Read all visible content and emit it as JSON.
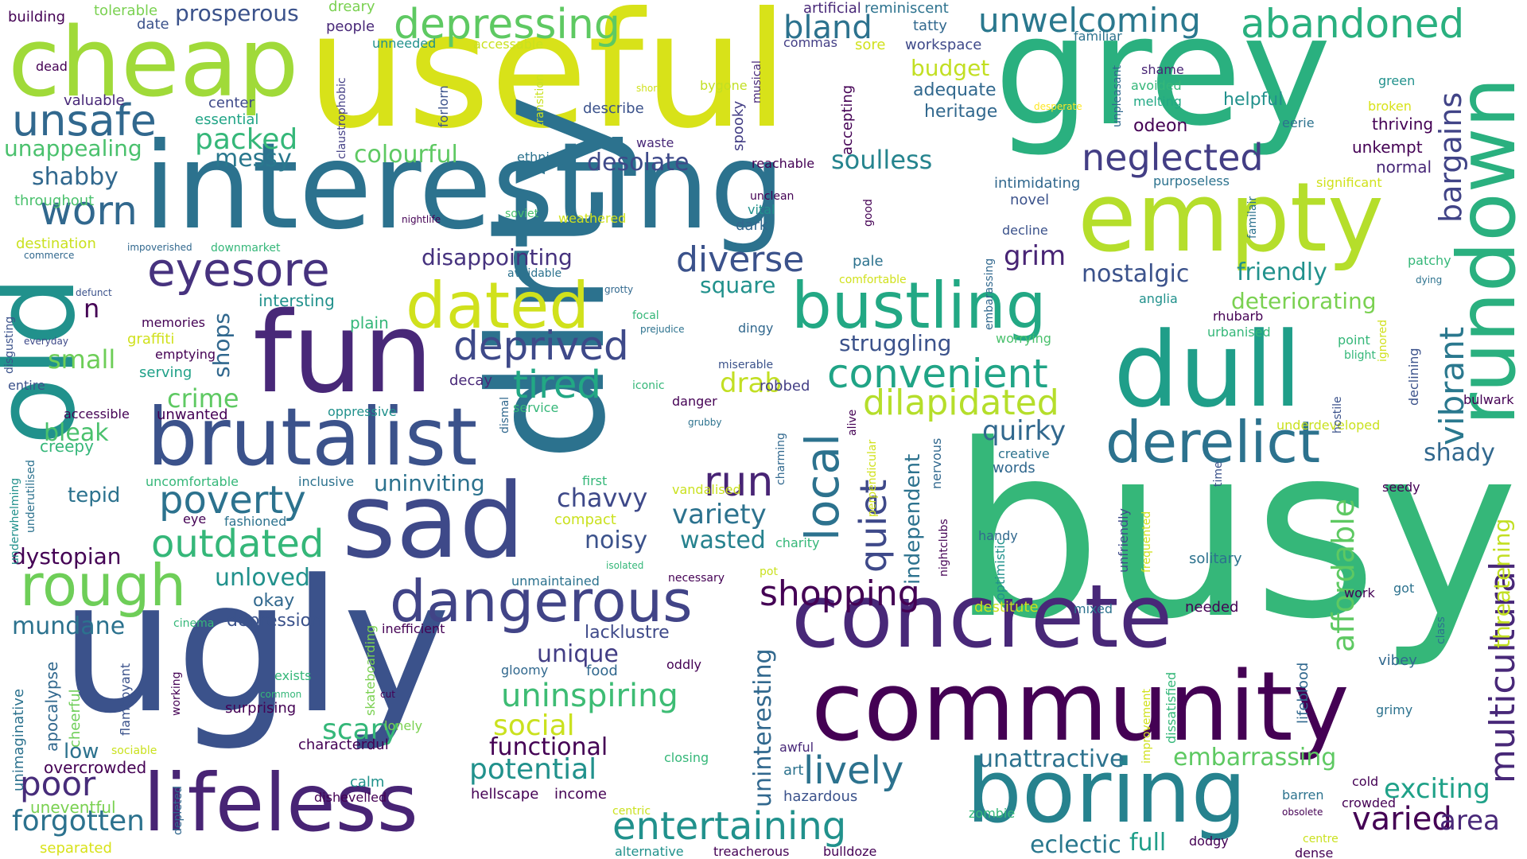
{
  "words": [
    {
      "text": "busy",
      "color": "#35b779"
    },
    {
      "text": "useful",
      "color": "#d8e219"
    },
    {
      "text": "grey",
      "color": "#2ab07f"
    },
    {
      "text": "interesting",
      "color": "#2c728e"
    },
    {
      "text": "dirty",
      "color": "#2c728e"
    },
    {
      "text": "ugly",
      "color": "#3b528b"
    },
    {
      "text": "old",
      "color": "#21918c"
    },
    {
      "text": "community",
      "color": "#440154"
    },
    {
      "text": "concrete",
      "color": "#482878"
    },
    {
      "text": "dull",
      "color": "#1f9e89"
    },
    {
      "text": "fun",
      "color": "#482878"
    },
    {
      "text": "cheap",
      "color": "#a0da39"
    },
    {
      "text": "empty",
      "color": "#b5de2b"
    },
    {
      "text": "sad",
      "color": "#3e4989"
    },
    {
      "text": "rundown",
      "color": "#2ab07f"
    },
    {
      "text": "brutalist",
      "color": "#3b528b"
    },
    {
      "text": "boring",
      "color": "#26828e"
    },
    {
      "text": "lifeless",
      "color": "#482475"
    },
    {
      "text": "dangerous",
      "color": "#414487"
    },
    {
      "text": "derelict",
      "color": "#2c728e"
    },
    {
      "text": "dated",
      "color": "#d0e11c"
    },
    {
      "text": "bustling",
      "color": "#22a884"
    },
    {
      "text": "rough",
      "color": "#6ece58"
    },
    {
      "text": "eyesore",
      "color": "#46327e"
    },
    {
      "text": "depressing",
      "color": "#5ec962"
    },
    {
      "text": "abandoned",
      "color": "#2ab07f"
    },
    {
      "text": "unsafe",
      "color": "#31688e"
    },
    {
      "text": "neglected",
      "color": "#433e85"
    },
    {
      "text": "local",
      "color": "#2c728e"
    },
    {
      "text": "worn",
      "color": "#31688e"
    },
    {
      "text": "bland",
      "color": "#2c728e"
    },
    {
      "text": "unwelcoming",
      "color": "#2a788e"
    },
    {
      "text": "deprived",
      "color": "#3e4989"
    },
    {
      "text": "diverse",
      "color": "#3b528b"
    },
    {
      "text": "convenient",
      "color": "#20a486"
    },
    {
      "text": "dilapidated",
      "color": "#b5de2b"
    },
    {
      "text": "outdated",
      "color": "#35b779"
    },
    {
      "text": "run",
      "color": "#482475"
    },
    {
      "text": "tired",
      "color": "#22a884"
    },
    {
      "text": "poverty",
      "color": "#2c728e"
    },
    {
      "text": "shopping",
      "color": "#440154"
    },
    {
      "text": "quiet",
      "color": "#3e4989"
    },
    {
      "text": "entertaining",
      "color": "#21918c"
    },
    {
      "text": "lively",
      "color": "#2c728e"
    },
    {
      "text": "poor",
      "color": "#472c7a"
    },
    {
      "text": "forgotten",
      "color": "#2c728e"
    },
    {
      "text": "multicultural",
      "color": "#482878"
    },
    {
      "text": "vibrant",
      "color": "#2a788e"
    },
    {
      "text": "bargains",
      "color": "#414487"
    },
    {
      "text": "affordable",
      "color": "#5ec962"
    },
    {
      "text": "varied",
      "color": "#440154"
    },
    {
      "text": "exciting",
      "color": "#1fa188"
    },
    {
      "text": "area",
      "color": "#482878"
    },
    {
      "text": "threatening",
      "color": "#c2df23"
    },
    {
      "text": "shady",
      "color": "#31688e"
    },
    {
      "text": "uninspiring",
      "color": "#3dbc74"
    },
    {
      "text": "social",
      "color": "#cae11f"
    },
    {
      "text": "potential",
      "color": "#21918c"
    },
    {
      "text": "scary",
      "color": "#35b779"
    },
    {
      "text": "functional",
      "color": "#440154"
    },
    {
      "text": "unattractive",
      "color": "#2c728e"
    },
    {
      "text": "embarrassing",
      "color": "#5ec962"
    },
    {
      "text": "eclectic",
      "color": "#2a788e"
    },
    {
      "text": "full",
      "color": "#1f9e89"
    },
    {
      "text": "unique",
      "color": "#433e85"
    },
    {
      "text": "variety",
      "color": "#2c728e"
    },
    {
      "text": "wasted",
      "color": "#26828e"
    },
    {
      "text": "chavvy",
      "color": "#3e4989"
    },
    {
      "text": "noisy",
      "color": "#3b528b"
    },
    {
      "text": "uninteresting",
      "color": "#31688e"
    },
    {
      "text": "soulless",
      "color": "#25848e"
    },
    {
      "text": "colourful",
      "color": "#5ec962"
    },
    {
      "text": "desolate",
      "color": "#3e4989"
    },
    {
      "text": "shabby",
      "color": "#31688e"
    },
    {
      "text": "packed",
      "color": "#35b779"
    },
    {
      "text": "messy",
      "color": "#2a788e"
    },
    {
      "text": "unappealing",
      "color": "#4ac16d"
    },
    {
      "text": "prosperous",
      "color": "#3b528b"
    },
    {
      "text": "disappointing",
      "color": "#46327e"
    },
    {
      "text": "grim",
      "color": "#482475"
    },
    {
      "text": "nostalgic",
      "color": "#3b528b"
    },
    {
      "text": "friendly",
      "color": "#21918c"
    },
    {
      "text": "deteriorating",
      "color": "#7ad151"
    },
    {
      "text": "struggling",
      "color": "#3b528b"
    },
    {
      "text": "quirky",
      "color": "#31688e"
    },
    {
      "text": "independent",
      "color": "#2c728e"
    },
    {
      "text": "crime",
      "color": "#5ec962"
    },
    {
      "text": "small",
      "color": "#6ece58"
    },
    {
      "text": "shops",
      "color": "#31688e"
    },
    {
      "text": "bleak",
      "color": "#4ac16d"
    },
    {
      "text": "mundane",
      "color": "#2c728e"
    },
    {
      "text": "unloved",
      "color": "#21918c"
    },
    {
      "text": "dystopian",
      "color": "#440154"
    },
    {
      "text": "uninviting",
      "color": "#2c728e"
    },
    {
      "text": "drab",
      "color": "#c2df23"
    },
    {
      "text": "square",
      "color": "#21918c"
    },
    {
      "text": "budget",
      "color": "#c2df23"
    },
    {
      "text": "adequate",
      "color": "#31688e"
    },
    {
      "text": "heritage",
      "color": "#31688e"
    },
    {
      "text": "helpful",
      "color": "#21918c"
    },
    {
      "text": "odeon",
      "color": "#440154"
    },
    {
      "text": "unkempt",
      "color": "#440154"
    },
    {
      "text": "normal",
      "color": "#482878"
    },
    {
      "text": "thriving",
      "color": "#440154"
    },
    {
      "text": "lackluster",
      "color": "#3e4989"
    },
    {
      "text": "lacklustre",
      "color": "#3e4989"
    },
    {
      "text": "n",
      "color": "#440154"
    },
    {
      "text": "low",
      "color": "#2c728e"
    },
    {
      "text": "okay",
      "color": "#31688e"
    },
    {
      "text": "depression",
      "color": "#3b528b"
    },
    {
      "text": "tepid",
      "color": "#2c728e"
    },
    {
      "text": "creepy",
      "color": "#35b779"
    },
    {
      "text": "cheerful",
      "color": "#6ece58"
    },
    {
      "text": "apocalypse",
      "color": "#31688e"
    },
    {
      "text": "unimaginative",
      "color": "#2c728e"
    },
    {
      "text": "overcrowded",
      "color": "#440154"
    },
    {
      "text": "uneventful",
      "color": "#7ad151"
    },
    {
      "text": "separated",
      "color": "#d8e219"
    },
    {
      "text": "serving",
      "color": "#1fa188"
    },
    {
      "text": "graffiti",
      "color": "#d0e11c"
    },
    {
      "text": "memories",
      "color": "#440154"
    },
    {
      "text": "plain",
      "color": "#35b779"
    },
    {
      "text": "intersting",
      "color": "#21918c"
    },
    {
      "text": "throughout",
      "color": "#4ac16d"
    },
    {
      "text": "destination",
      "color": "#cae11f"
    },
    {
      "text": "commerce",
      "color": "#31688e"
    },
    {
      "text": "downmarket",
      "color": "#35b779"
    },
    {
      "text": "impoverished",
      "color": "#31688e"
    },
    {
      "text": "avoidable",
      "color": "#2c728e"
    },
    {
      "text": "weathered",
      "color": "#d0e11c"
    },
    {
      "text": "building",
      "color": "#440154"
    },
    {
      "text": "tolerable",
      "color": "#7ad151"
    },
    {
      "text": "date",
      "color": "#3b528b"
    },
    {
      "text": "dreary",
      "color": "#7ad151"
    },
    {
      "text": "people",
      "color": "#482878"
    },
    {
      "text": "unneeded",
      "color": "#21918c"
    },
    {
      "text": "accessable",
      "color": "#cae11f"
    },
    {
      "text": "dead",
      "color": "#440154"
    },
    {
      "text": "valuable",
      "color": "#482878"
    },
    {
      "text": "center",
      "color": "#3e4989"
    },
    {
      "text": "essential",
      "color": "#20a486"
    },
    {
      "text": "artificial",
      "color": "#482878"
    },
    {
      "text": "reminiscent",
      "color": "#2c728e"
    },
    {
      "text": "tatty",
      "color": "#31688e"
    },
    {
      "text": "workspace",
      "color": "#3e4989"
    },
    {
      "text": "commas",
      "color": "#433e85"
    },
    {
      "text": "sore",
      "color": "#d0e11c"
    },
    {
      "text": "familiar",
      "color": "#2c728e"
    },
    {
      "text": "shame",
      "color": "#482475"
    },
    {
      "text": "avoided",
      "color": "#35b779"
    },
    {
      "text": "melting",
      "color": "#22a884"
    },
    {
      "text": "green",
      "color": "#21918c"
    },
    {
      "text": "broken",
      "color": "#d8e219"
    },
    {
      "text": "eerie",
      "color": "#2c728e"
    },
    {
      "text": "describe",
      "color": "#3b528b"
    },
    {
      "text": "bygone",
      "color": "#c2df23"
    },
    {
      "text": "waste",
      "color": "#482878"
    },
    {
      "text": "short",
      "color": "#d0e11c"
    },
    {
      "text": "desperate",
      "color": "#fde725"
    },
    {
      "text": "unpleasant",
      "color": "#31688e"
    },
    {
      "text": "forlorn",
      "color": "#3b528b"
    },
    {
      "text": "transition",
      "color": "#cae11f"
    },
    {
      "text": "ethnic",
      "color": "#2c728e"
    },
    {
      "text": "claustrophobic",
      "color": "#433e85"
    },
    {
      "text": "spooky",
      "color": "#433e85"
    },
    {
      "text": "musical",
      "color": "#482878"
    },
    {
      "text": "accepting",
      "color": "#440154"
    },
    {
      "text": "reachable",
      "color": "#440154"
    },
    {
      "text": "unclean",
      "color": "#440154"
    },
    {
      "text": "vital",
      "color": "#21918c"
    },
    {
      "text": "dark",
      "color": "#31688e"
    },
    {
      "text": "good",
      "color": "#440154"
    },
    {
      "text": "intimidating",
      "color": "#31688e"
    },
    {
      "text": "purposeless",
      "color": "#2c728e"
    },
    {
      "text": "significant",
      "color": "#d0e11c"
    },
    {
      "text": "novel",
      "color": "#3b528b"
    },
    {
      "text": "decline",
      "color": "#3b528b"
    },
    {
      "text": "embarassing",
      "color": "#31688e"
    },
    {
      "text": "soviet",
      "color": "#4ac16d"
    },
    {
      "text": "nightlife",
      "color": "#440154"
    },
    {
      "text": "familair",
      "color": "#2c728e"
    },
    {
      "text": "lifeblood",
      "color": "#31688e"
    },
    {
      "text": "patchy",
      "color": "#35b779"
    },
    {
      "text": "dying",
      "color": "#2c728e"
    },
    {
      "text": "comfortable",
      "color": "#d0e11c"
    },
    {
      "text": "pale",
      "color": "#2c728e"
    },
    {
      "text": "anglia",
      "color": "#21918c"
    },
    {
      "text": "rhubarb",
      "color": "#440154"
    },
    {
      "text": "urbanised",
      "color": "#35b779"
    },
    {
      "text": "point",
      "color": "#35b779"
    },
    {
      "text": "blight",
      "color": "#35b779"
    },
    {
      "text": "ignored",
      "color": "#d0e11c"
    },
    {
      "text": "declining",
      "color": "#3b528b"
    },
    {
      "text": "worrying",
      "color": "#4ac16d"
    },
    {
      "text": "defunct",
      "color": "#3b528b"
    },
    {
      "text": "disgusting",
      "color": "#3b528b"
    },
    {
      "text": "everyday",
      "color": "#3e4989"
    },
    {
      "text": "entire",
      "color": "#3b528b"
    },
    {
      "text": "grotty",
      "color": "#31688e"
    },
    {
      "text": "focal",
      "color": "#35b779"
    },
    {
      "text": "prejudice",
      "color": "#2c728e"
    },
    {
      "text": "dingy",
      "color": "#31688e"
    },
    {
      "text": "emptying",
      "color": "#440154"
    },
    {
      "text": "decay",
      "color": "#482878"
    },
    {
      "text": "iconic",
      "color": "#35b779"
    },
    {
      "text": "miserable",
      "color": "#3b528b"
    },
    {
      "text": "robbed",
      "color": "#433e85"
    },
    {
      "text": "danger",
      "color": "#440154"
    },
    {
      "text": "grubby",
      "color": "#2c728e"
    },
    {
      "text": "service",
      "color": "#35b779"
    },
    {
      "text": "oppressive",
      "color": "#21918c"
    },
    {
      "text": "dismal",
      "color": "#31688e"
    },
    {
      "text": "alive",
      "color": "#440154"
    },
    {
      "text": "charming",
      "color": "#31688e"
    },
    {
      "text": "perpendicular",
      "color": "#d0e11c"
    },
    {
      "text": "nervous",
      "color": "#31688e"
    },
    {
      "text": "nightclubs",
      "color": "#440154"
    },
    {
      "text": "creative",
      "color": "#2c728e"
    },
    {
      "text": "words",
      "color": "#31688e"
    },
    {
      "text": "underdeveloped",
      "color": "#cae11f"
    },
    {
      "text": "hostile",
      "color": "#3b528b"
    },
    {
      "text": "time",
      "color": "#3b528b"
    },
    {
      "text": "seedy",
      "color": "#440154"
    },
    {
      "text": "bulwark",
      "color": "#440154"
    },
    {
      "text": "accessible",
      "color": "#440154"
    },
    {
      "text": "unwanted",
      "color": "#440154"
    },
    {
      "text": "underutilised",
      "color": "#2c728e"
    },
    {
      "text": "underwhelming",
      "color": "#21918c"
    },
    {
      "text": "uncomfortable",
      "color": "#35b779"
    },
    {
      "text": "inclusive",
      "color": "#2c728e"
    },
    {
      "text": "first",
      "color": "#35b779"
    },
    {
      "text": "compact",
      "color": "#cae11f"
    },
    {
      "text": "vandalised",
      "color": "#cae11f"
    },
    {
      "text": "eye",
      "color": "#440154"
    },
    {
      "text": "fashioned",
      "color": "#2c728e"
    },
    {
      "text": "charity",
      "color": "#35b779"
    },
    {
      "text": "isolated",
      "color": "#35b779"
    },
    {
      "text": "handy",
      "color": "#31688e"
    },
    {
      "text": "unfriendly",
      "color": "#3e4989"
    },
    {
      "text": "frequented",
      "color": "#d0e11c"
    },
    {
      "text": "solitary",
      "color": "#2c728e"
    },
    {
      "text": "optimistic",
      "color": "#21918c"
    },
    {
      "text": "destitute",
      "color": "#cae11f"
    },
    {
      "text": "mixed",
      "color": "#2c728e"
    },
    {
      "text": "needed",
      "color": "#440154"
    },
    {
      "text": "pot",
      "color": "#cae11f"
    },
    {
      "text": "necessary",
      "color": "#440154"
    },
    {
      "text": "unmaintained",
      "color": "#2c728e"
    },
    {
      "text": "work",
      "color": "#440154"
    },
    {
      "text": "got",
      "color": "#2c728e"
    },
    {
      "text": "class",
      "color": "#2c728e"
    },
    {
      "text": "vibey",
      "color": "#31688e"
    },
    {
      "text": "grimy",
      "color": "#2c728e"
    },
    {
      "text": "improvement",
      "color": "#d0e11c"
    },
    {
      "text": "dissatisfied",
      "color": "#35b779"
    },
    {
      "text": "cinema",
      "color": "#35b779"
    },
    {
      "text": "inefficient",
      "color": "#440154"
    },
    {
      "text": "flamboyant",
      "color": "#3b528b"
    },
    {
      "text": "skateboarding",
      "color": "#7ad151"
    },
    {
      "text": "exists",
      "color": "#35b779"
    },
    {
      "text": "common",
      "color": "#35b779"
    },
    {
      "text": "working",
      "color": "#440154"
    },
    {
      "text": "surprising",
      "color": "#440154"
    },
    {
      "text": "cut",
      "color": "#440154"
    },
    {
      "text": "lonely",
      "color": "#7ad151"
    },
    {
      "text": "gloomy",
      "color": "#31688e"
    },
    {
      "text": "food",
      "color": "#31688e"
    },
    {
      "text": "oddly",
      "color": "#440154"
    },
    {
      "text": "characterdul",
      "color": "#440154"
    },
    {
      "text": "sociable",
      "color": "#cae11f"
    },
    {
      "text": "calm",
      "color": "#21918c"
    },
    {
      "text": "dishevelled",
      "color": "#440154"
    },
    {
      "text": "hellscape",
      "color": "#440154"
    },
    {
      "text": "income",
      "color": "#440154"
    },
    {
      "text": "closing",
      "color": "#35b779"
    },
    {
      "text": "awful",
      "color": "#482878"
    },
    {
      "text": "art",
      "color": "#2c728e"
    },
    {
      "text": "hazardous",
      "color": "#3b528b"
    },
    {
      "text": "centric",
      "color": "#cae11f"
    },
    {
      "text": "alternative",
      "color": "#21918c"
    },
    {
      "text": "treacherous",
      "color": "#440154"
    },
    {
      "text": "bulldoze",
      "color": "#440154"
    },
    {
      "text": "depleted",
      "color": "#31688e"
    },
    {
      "text": "zombie",
      "color": "#35b779"
    },
    {
      "text": "barren",
      "color": "#2c728e"
    },
    {
      "text": "cold",
      "color": "#440154"
    },
    {
      "text": "crowded",
      "color": "#440154"
    },
    {
      "text": "obsolete",
      "color": "#440154"
    },
    {
      "text": "centre",
      "color": "#cae11f"
    },
    {
      "text": "dense",
      "color": "#440154"
    },
    {
      "text": "dodgy",
      "color": "#440154"
    }
  ]
}
